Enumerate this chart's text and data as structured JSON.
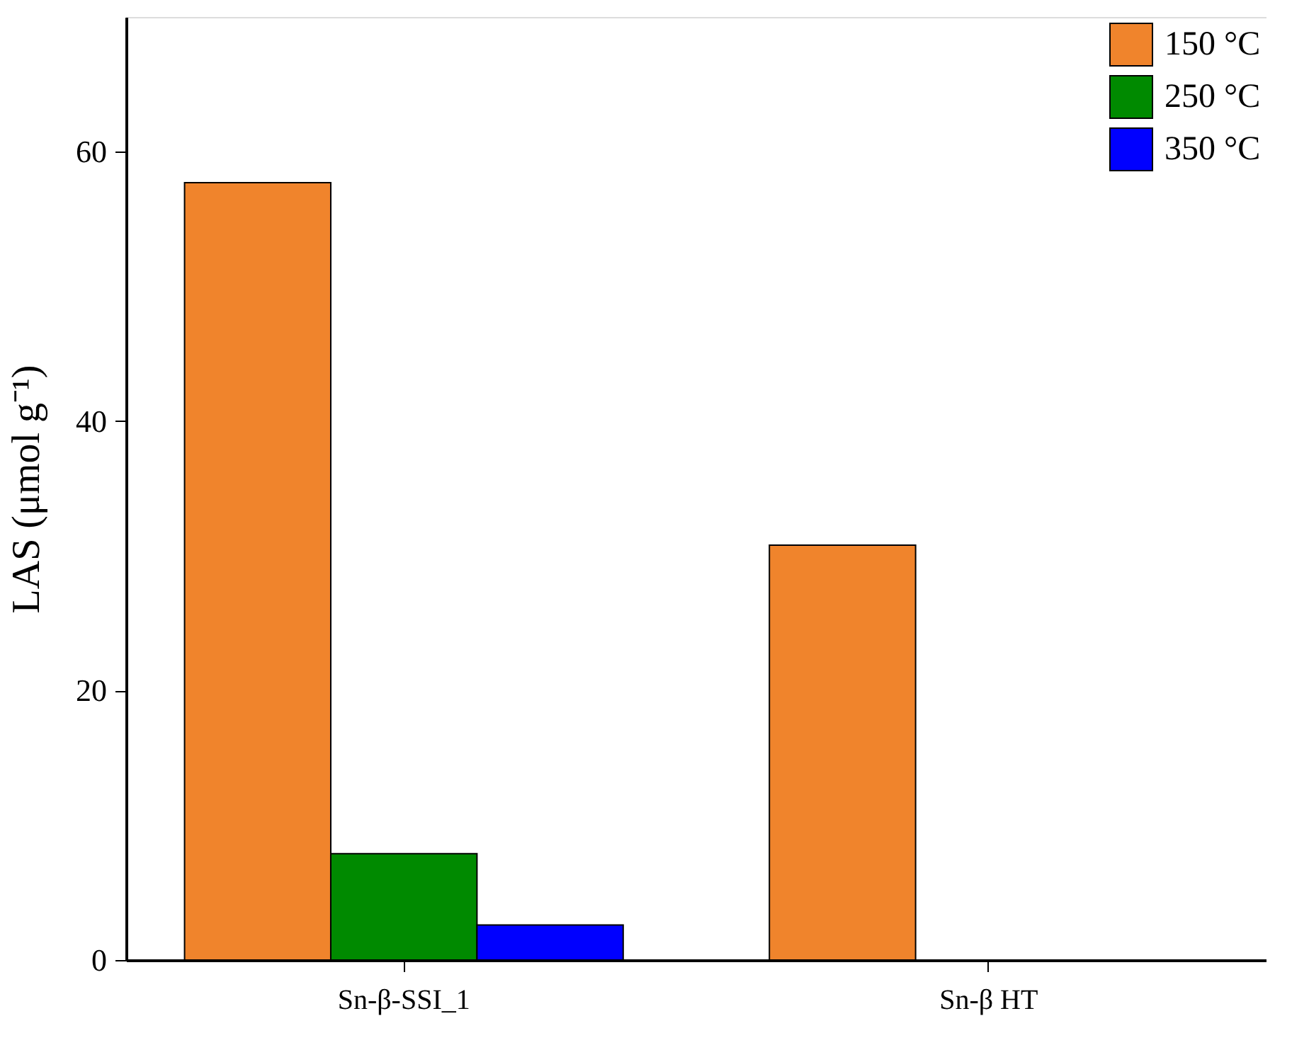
{
  "chart_data": {
    "type": "bar",
    "ylabel": "LAS (μmol g⁻¹)",
    "categories": [
      "Sn-β-SSI_1",
      "Sn-β HT"
    ],
    "series": [
      {
        "name": "150 °C",
        "color": "#f0842c",
        "values": [
          57.7,
          30.8
        ]
      },
      {
        "name": "250 °C",
        "color": "#008a00",
        "values": [
          7.9,
          null
        ]
      },
      {
        "name": "350 °C",
        "color": "#0000ff",
        "values": [
          2.6,
          null
        ]
      }
    ],
    "ylim": [
      0,
      70
    ],
    "yticks": [
      0,
      20,
      40,
      60
    ],
    "grid": false,
    "legend": "top right"
  }
}
